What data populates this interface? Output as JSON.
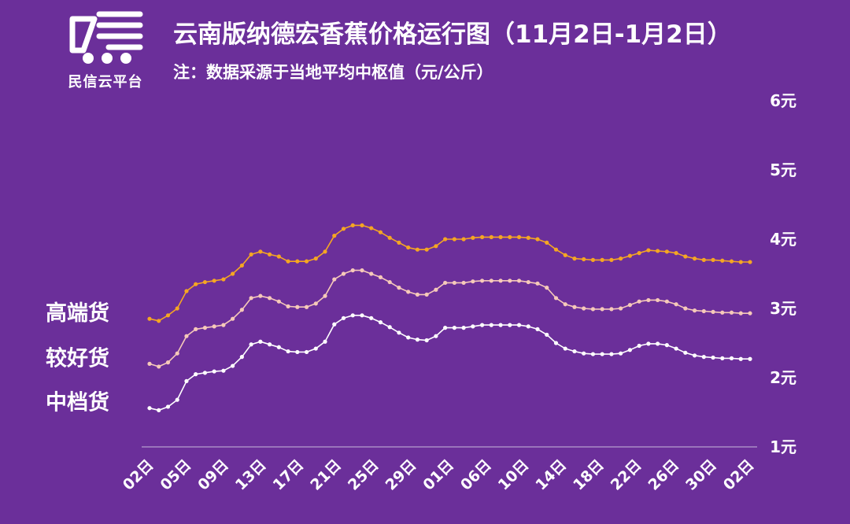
{
  "logo": {
    "text": "民信云平台",
    "icon": "truck-icon"
  },
  "header": {
    "title": "云南版纳德宏香蕉价格运行图（11月2日-1月2日）",
    "subtitle": "注：数据采源于当地平均中枢值（元/公斤）"
  },
  "colors": {
    "background": "#6b2f9a",
    "high": "#f5a623",
    "good": "#f6c9b9",
    "mid": "#ffffff"
  },
  "chart_data": {
    "type": "line",
    "title": "云南版纳德宏香蕉价格运行图（11月2日-1月2日）",
    "ylabel": "元/公斤",
    "ylim": [
      1,
      6
    ],
    "yticks": [
      "1元",
      "2元",
      "3元",
      "4元",
      "5元",
      "6元"
    ],
    "y_axis_position": "right",
    "legend_placement": "left",
    "grid": false,
    "x_tick_labels": [
      "02日",
      "05日",
      "09日",
      "13日",
      "17日",
      "21日",
      "25日",
      "29日",
      "01日",
      "06日",
      "10日",
      "14日",
      "18日",
      "22日",
      "26日",
      "30日",
      "02日"
    ],
    "series": [
      {
        "name": "高端货",
        "color": "#f5a623",
        "values": [
          2.85,
          2.82,
          2.9,
          3.0,
          3.25,
          3.35,
          3.38,
          3.4,
          3.42,
          3.5,
          3.62,
          3.78,
          3.82,
          3.78,
          3.75,
          3.68,
          3.68,
          3.68,
          3.72,
          3.82,
          4.05,
          4.15,
          4.2,
          4.2,
          4.16,
          4.1,
          4.02,
          3.95,
          3.88,
          3.85,
          3.85,
          3.9,
          4.0,
          4.0,
          4.0,
          4.02,
          4.03,
          4.03,
          4.03,
          4.03,
          4.03,
          4.02,
          4.0,
          3.95,
          3.85,
          3.77,
          3.72,
          3.71,
          3.7,
          3.7,
          3.7,
          3.72,
          3.76,
          3.8,
          3.84,
          3.83,
          3.82,
          3.8,
          3.75,
          3.72,
          3.7,
          3.7,
          3.69,
          3.68,
          3.67,
          3.67
        ]
      },
      {
        "name": "较好货",
        "color": "#f6c9b9",
        "values": [
          2.2,
          2.16,
          2.22,
          2.35,
          2.6,
          2.7,
          2.72,
          2.74,
          2.76,
          2.85,
          2.98,
          3.15,
          3.18,
          3.15,
          3.1,
          3.03,
          3.02,
          3.02,
          3.07,
          3.18,
          3.42,
          3.5,
          3.55,
          3.55,
          3.5,
          3.45,
          3.38,
          3.3,
          3.24,
          3.2,
          3.2,
          3.27,
          3.37,
          3.37,
          3.37,
          3.39,
          3.4,
          3.4,
          3.4,
          3.4,
          3.4,
          3.38,
          3.36,
          3.3,
          3.15,
          3.06,
          3.02,
          3.0,
          2.99,
          2.99,
          2.99,
          3.0,
          3.05,
          3.1,
          3.12,
          3.12,
          3.1,
          3.06,
          3.0,
          2.97,
          2.96,
          2.95,
          2.94,
          2.94,
          2.93,
          2.93
        ]
      },
      {
        "name": "中档货",
        "color": "#ffffff",
        "values": [
          1.56,
          1.53,
          1.58,
          1.68,
          1.95,
          2.05,
          2.07,
          2.09,
          2.1,
          2.17,
          2.3,
          2.48,
          2.52,
          2.48,
          2.44,
          2.38,
          2.37,
          2.37,
          2.42,
          2.52,
          2.77,
          2.86,
          2.9,
          2.9,
          2.86,
          2.8,
          2.73,
          2.65,
          2.58,
          2.55,
          2.54,
          2.6,
          2.72,
          2.72,
          2.72,
          2.74,
          2.76,
          2.76,
          2.76,
          2.76,
          2.76,
          2.74,
          2.7,
          2.62,
          2.5,
          2.42,
          2.38,
          2.35,
          2.34,
          2.34,
          2.34,
          2.35,
          2.4,
          2.46,
          2.49,
          2.49,
          2.47,
          2.42,
          2.36,
          2.32,
          2.3,
          2.29,
          2.28,
          2.28,
          2.27,
          2.27
        ]
      }
    ]
  }
}
